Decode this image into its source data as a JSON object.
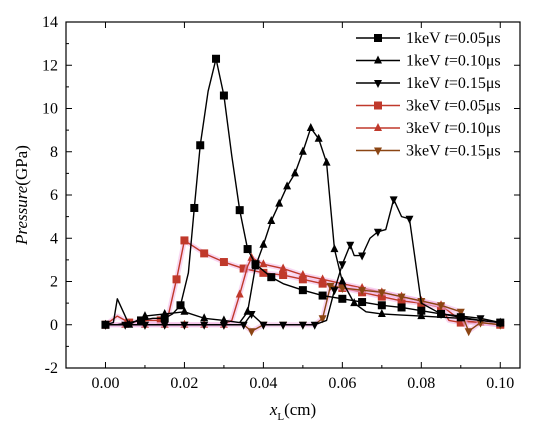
{
  "chart_data": {
    "type": "line",
    "xlabel_main": "x",
    "xlabel_sub": "L",
    "xlabel_unit": "(cm)",
    "ylabel_italic": "Pressure",
    "ylabel_unit": "(GPa)",
    "xlim": [
      -0.01,
      0.105
    ],
    "ylim": [
      -2,
      14
    ],
    "xticks": [
      "0.00",
      "0.02",
      "0.04",
      "0.06",
      "0.08",
      "0.10"
    ],
    "yticks": [
      "-2",
      "0",
      "2",
      "4",
      "6",
      "8",
      "10",
      "12",
      "14"
    ],
    "legend_position": "top-right",
    "series": [
      {
        "name_prefix": "1keV ",
        "name_var": "t",
        "name_suffix": "=0.05μs",
        "color": "#000000",
        "marker": "square",
        "x": [
          0.0,
          0.003,
          0.006,
          0.009,
          0.012,
          0.015,
          0.017,
          0.019,
          0.021,
          0.0225,
          0.024,
          0.026,
          0.028,
          0.03,
          0.032,
          0.034,
          0.036,
          0.038,
          0.04,
          0.042,
          0.045,
          0.05,
          0.055,
          0.06,
          0.065,
          0.07,
          0.075,
          0.08,
          0.085,
          0.09,
          0.095,
          0.1
        ],
        "y": [
          0.0,
          0.0,
          0.1,
          0.2,
          0.3,
          0.3,
          0.5,
          0.9,
          2.4,
          5.4,
          8.3,
          10.8,
          12.3,
          10.6,
          7.8,
          5.3,
          3.5,
          2.8,
          2.5,
          2.2,
          1.9,
          1.6,
          1.35,
          1.2,
          1.05,
          0.9,
          0.8,
          0.65,
          0.5,
          0.35,
          0.2,
          0.1
        ],
        "marker_idx": [
          0,
          3,
          5,
          7,
          9,
          10,
          12,
          13,
          15,
          16,
          17,
          19,
          21,
          22,
          23,
          24,
          25,
          26,
          27,
          28,
          29,
          31
        ]
      },
      {
        "name_prefix": "1keV ",
        "name_var": "t",
        "name_suffix": "=0.10μs",
        "color": "#000000",
        "marker": "triangle-up",
        "x": [
          0.0,
          0.002,
          0.003,
          0.006,
          0.01,
          0.015,
          0.02,
          0.025,
          0.03,
          0.034,
          0.036,
          0.038,
          0.04,
          0.042,
          0.044,
          0.046,
          0.048,
          0.05,
          0.052,
          0.054,
          0.056,
          0.058,
          0.06,
          0.063,
          0.066,
          0.07,
          0.075,
          0.08,
          0.085,
          0.09,
          0.095,
          0.1
        ],
        "y": [
          0.0,
          0.1,
          1.2,
          0.0,
          0.4,
          0.5,
          0.6,
          0.3,
          0.2,
          0.1,
          0.6,
          2.7,
          3.7,
          4.8,
          5.6,
          6.4,
          7.0,
          8.0,
          9.1,
          8.6,
          7.5,
          3.5,
          2.0,
          1.0,
          0.6,
          0.5,
          0.45,
          0.4,
          0.35,
          0.3,
          0.2,
          0.1
        ],
        "marker_idx": [
          0,
          3,
          4,
          5,
          6,
          7,
          8,
          10,
          11,
          12,
          13,
          14,
          15,
          16,
          17,
          18,
          19,
          20,
          21,
          22,
          23,
          25,
          27,
          29,
          31
        ]
      },
      {
        "name_prefix": "1keV ",
        "name_var": "t",
        "name_suffix": "=0.15μs",
        "color": "#000000",
        "marker": "triangle-down",
        "x": [
          0.0,
          0.005,
          0.01,
          0.015,
          0.02,
          0.025,
          0.03,
          0.035,
          0.037,
          0.04,
          0.045,
          0.05,
          0.053,
          0.056,
          0.058,
          0.06,
          0.062,
          0.063,
          0.065,
          0.067,
          0.069,
          0.071,
          0.073,
          0.075,
          0.077,
          0.08,
          0.085,
          0.09,
          0.095,
          0.1
        ],
        "y": [
          0.0,
          0.0,
          0.0,
          0.0,
          0.0,
          0.0,
          0.0,
          0.0,
          0.5,
          0.0,
          0.0,
          0.0,
          0.0,
          0.2,
          1.6,
          2.8,
          3.7,
          3.2,
          3.2,
          4.0,
          4.3,
          4.4,
          5.8,
          5.0,
          4.9,
          1.0,
          0.5,
          0.4,
          0.3,
          0.1
        ],
        "marker_idx": [
          0,
          1,
          2,
          3,
          4,
          5,
          6,
          7,
          8,
          9,
          10,
          11,
          12,
          14,
          15,
          16,
          18,
          20,
          22,
          24,
          26,
          28,
          29
        ]
      },
      {
        "name_prefix": "3keV ",
        "name_var": "t",
        "name_suffix": "=0.05μs",
        "color": "#c0392b",
        "marker": "square",
        "x": [
          0.0,
          0.003,
          0.006,
          0.01,
          0.014,
          0.016,
          0.018,
          0.02,
          0.025,
          0.03,
          0.035,
          0.04,
          0.045,
          0.05,
          0.055,
          0.06,
          0.065,
          0.07,
          0.075,
          0.08,
          0.085,
          0.087,
          0.09,
          0.095,
          0.1
        ],
        "y": [
          0.0,
          0.4,
          0.1,
          0.2,
          0.2,
          0.5,
          2.1,
          3.9,
          3.3,
          2.9,
          2.6,
          2.4,
          2.3,
          2.1,
          1.9,
          1.7,
          1.5,
          1.3,
          1.1,
          1.0,
          0.8,
          0.2,
          0.1,
          0.1,
          0.0
        ],
        "marker_idx": [
          0,
          2,
          4,
          6,
          7,
          8,
          9,
          10,
          11,
          12,
          13,
          14,
          15,
          16,
          17,
          18,
          19,
          20,
          22,
          24
        ]
      },
      {
        "name_prefix": "3keV ",
        "name_var": "t",
        "name_suffix": "=0.10μs",
        "color": "#c0392b",
        "marker": "triangle-up",
        "x": [
          0.0,
          0.005,
          0.01,
          0.015,
          0.02,
          0.025,
          0.03,
          0.032,
          0.034,
          0.036,
          0.037,
          0.04,
          0.045,
          0.05,
          0.055,
          0.06,
          0.065,
          0.07,
          0.075,
          0.08,
          0.085,
          0.09,
          0.095,
          0.1
        ],
        "y": [
          0.0,
          0.0,
          0.0,
          0.0,
          0.0,
          0.0,
          0.0,
          0.2,
          1.4,
          2.7,
          3.1,
          2.8,
          2.6,
          2.3,
          2.1,
          1.9,
          1.7,
          1.5,
          1.3,
          1.1,
          0.9,
          0.2,
          0.1,
          0.0
        ],
        "marker_idx": [
          0,
          1,
          2,
          3,
          4,
          5,
          6,
          8,
          10,
          11,
          12,
          13,
          14,
          15,
          16,
          17,
          18,
          19,
          20,
          21,
          22,
          23
        ]
      },
      {
        "name_prefix": "3keV ",
        "name_var": "t",
        "name_suffix": "=0.15μs",
        "color": "#8b4513",
        "marker": "triangle-down",
        "x": [
          0.0,
          0.005,
          0.01,
          0.015,
          0.02,
          0.025,
          0.03,
          0.035,
          0.037,
          0.04,
          0.045,
          0.05,
          0.053,
          0.055,
          0.057,
          0.06,
          0.065,
          0.07,
          0.075,
          0.08,
          0.085,
          0.09,
          0.092,
          0.095,
          0.1
        ],
        "y": [
          0.0,
          0.0,
          0.0,
          0.0,
          0.0,
          0.0,
          0.0,
          0.0,
          -0.3,
          0.0,
          0.0,
          0.0,
          0.0,
          0.3,
          1.8,
          1.7,
          1.6,
          1.5,
          1.3,
          1.1,
          0.9,
          0.6,
          -0.3,
          0.1,
          0.0
        ],
        "marker_idx": [
          0,
          2,
          4,
          6,
          8,
          9,
          10,
          11,
          13,
          14,
          15,
          16,
          17,
          18,
          19,
          20,
          21,
          22,
          23,
          24
        ]
      }
    ]
  }
}
